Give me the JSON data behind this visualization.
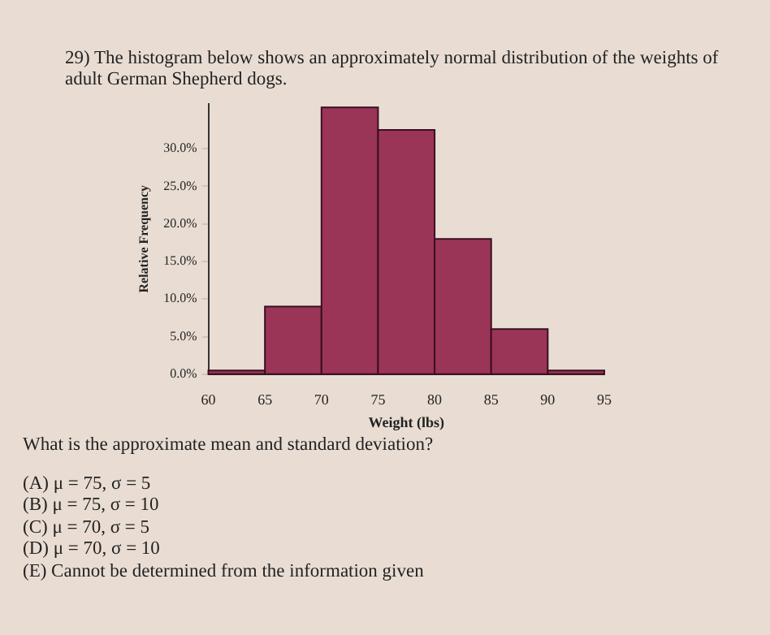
{
  "chart_data": {
    "type": "histogram",
    "title": "29) The histogram below shows an approximately normal distribution of the weights of adult German Shepherd dogs.",
    "xlabel": "Weight (lbs)",
    "ylabel": "Relative Frequency",
    "bins": [
      60,
      65,
      70,
      75,
      80,
      85,
      90,
      95
    ],
    "values": [
      0.5,
      9,
      35.5,
      32.5,
      18,
      6,
      0.5
    ],
    "color": "#9b3558",
    "xlim": [
      60,
      95
    ],
    "xticks": [
      60,
      65,
      70,
      75,
      80,
      85,
      90,
      95
    ],
    "ylim": [
      0,
      36
    ],
    "yticks": [
      {
        "value": 0,
        "label": "0.0%"
      },
      {
        "value": 5,
        "label": "5.0%"
      },
      {
        "value": 10,
        "label": "10.0%"
      },
      {
        "value": 15,
        "label": "15.0%"
      },
      {
        "value": 20,
        "label": "20.0%"
      },
      {
        "value": 25,
        "label": "25.0%"
      },
      {
        "value": 30,
        "label": "30.0%"
      }
    ],
    "grid": false,
    "legend": false,
    "annotations": [
      "What is the approximate mean and standard deviation?",
      "(A) μ = 75, σ = 5",
      "(B) μ = 75, σ = 10",
      "(C) μ = 70, σ = 5",
      "(D) μ = 70, σ = 10",
      "(E) Cannot be determined from the information given"
    ]
  }
}
